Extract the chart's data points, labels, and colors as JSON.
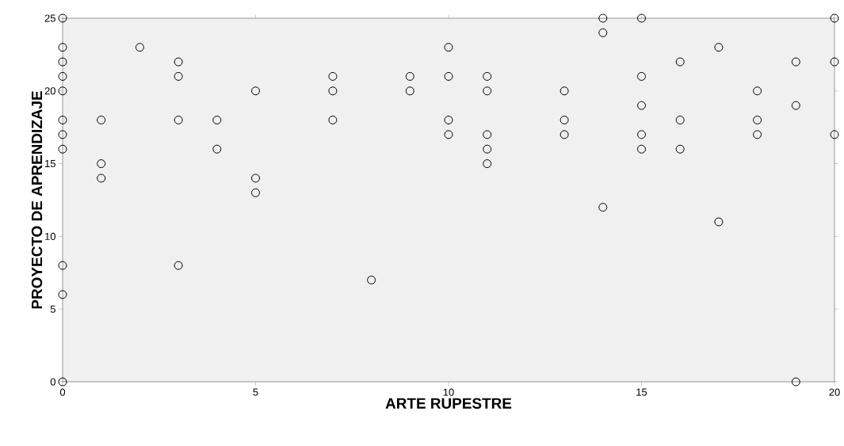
{
  "chart_data": {
    "type": "scatter",
    "xlabel": "ARTE RUPESTRE",
    "ylabel": "PROYECTO DE APRENDIZAJE",
    "x": [
      0,
      0,
      0,
      0,
      0,
      0,
      0,
      0,
      0,
      0,
      0,
      1,
      1,
      1,
      2,
      3,
      3,
      3,
      3,
      4,
      4,
      5,
      5,
      5,
      7,
      7,
      7,
      8,
      9,
      9,
      10,
      10,
      10,
      10,
      11,
      11,
      11,
      11,
      11,
      13,
      13,
      13,
      14,
      14,
      14,
      15,
      15,
      15,
      15,
      15,
      16,
      16,
      16,
      17,
      17,
      18,
      18,
      18,
      19,
      19,
      19,
      20,
      20,
      20
    ],
    "values": [
      25,
      23,
      22,
      21,
      20,
      18,
      17,
      16,
      8,
      6,
      0,
      18,
      15,
      14,
      23,
      22,
      21,
      18,
      8,
      18,
      16,
      20,
      14,
      13,
      21,
      20,
      18,
      7,
      21,
      20,
      23,
      21,
      18,
      17,
      21,
      20,
      17,
      16,
      15,
      20,
      18,
      17,
      25,
      24,
      12,
      25,
      21,
      19,
      17,
      16,
      22,
      18,
      16,
      23,
      11,
      20,
      18,
      17,
      22,
      19,
      0,
      25,
      22,
      17
    ],
    "color": "#000000",
    "marker": "circle",
    "grid": false,
    "xlim": [
      0,
      20
    ],
    "ylim": [
      0,
      25
    ],
    "xticks": [
      0,
      5,
      10,
      15,
      20
    ],
    "yticks": [
      0,
      5,
      10,
      15,
      20,
      25
    ]
  }
}
